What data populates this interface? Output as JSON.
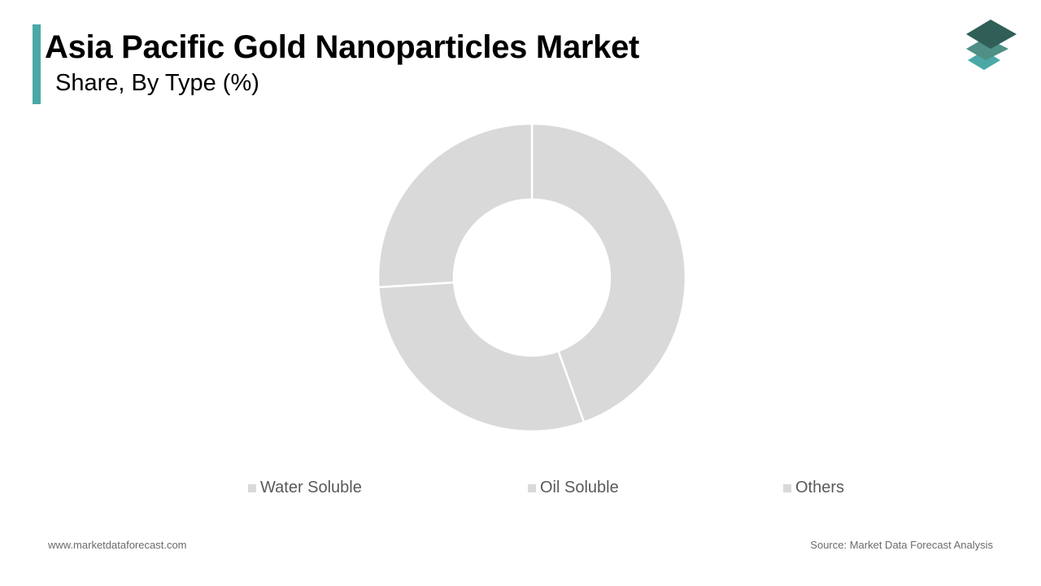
{
  "header": {
    "title": "Asia Pacific Gold Nanoparticles Market",
    "subtitle": "Share, By Type (%)"
  },
  "footer": {
    "website": "www.marketdataforecast.com",
    "source": "Source: Market Data Forecast Analysis"
  },
  "colors": {
    "accent": "#4aa9a6",
    "slice": "#d9d9d9",
    "slice_border": "#ffffff",
    "legend_text": "#595959",
    "logo_dark": "#2f5f57",
    "logo_mid": "#4f8f86",
    "logo_light": "#4aa9a6"
  },
  "icons": {
    "logo": "stacked-layers-icon"
  },
  "chart_data": {
    "type": "pie",
    "variant": "donut",
    "title": "Asia Pacific Gold Nanoparticles Market",
    "subtitle": "Share, By Type (%)",
    "categories": [
      "Water Soluble",
      "Oil Soluble",
      "Others"
    ],
    "values": [
      44.5,
      29.5,
      26.0
    ],
    "start_angle_deg": 0,
    "direction": "clockwise",
    "legend_position": "bottom",
    "data_labels": false
  }
}
